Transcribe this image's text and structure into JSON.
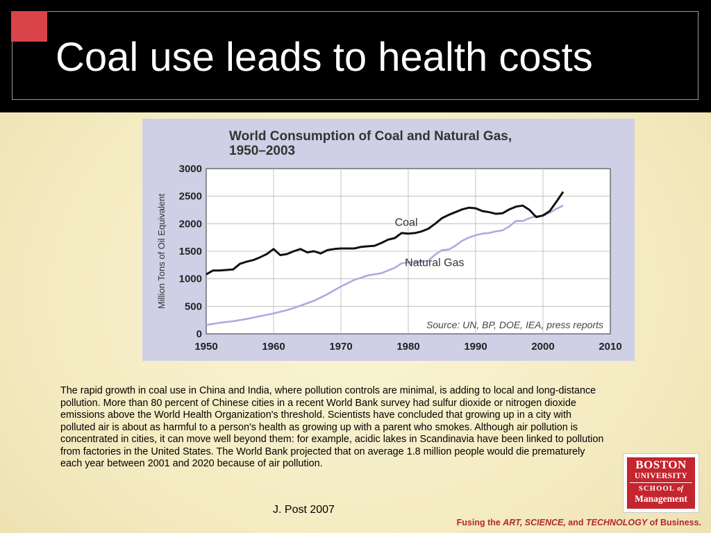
{
  "slide": {
    "title": "Coal use leads to health costs",
    "body": "The rapid growth in coal use in China and India, where pollution controls are minimal, is adding to local and long-distance pollution. More than 80 percent of Chinese cities in a recent World Bank survey had sulfur dioxide or nitrogen dioxide emissions above the World Health Organization's threshold. Scientists have concluded that growing up in a city with polluted air is about as harmful to a person's health as growing up with a parent who smokes. Although air pollution is concentrated in cities, it can move well beyond them: for example, acidic lakes in Scandinavia have been linked to pollution from factories in the United States. The World Bank projected that on average 1.8 million people would die prematurely each year between 2001 and 2020 because of air pollution.",
    "credit": "J. Post 2007"
  },
  "logo": {
    "line1": "BOSTON",
    "line2": "UNIVERSITY",
    "line3a": "SCHOOL",
    "line3b": "of",
    "line4": "Management"
  },
  "tagline": {
    "prefix": "Fusing the ",
    "art": "ART, SCIENCE,",
    "mid": " and ",
    "tech": "TECHNOLOGY",
    "suffix": " of Business."
  },
  "colors": {
    "header_bg": "#000000",
    "accent_red": "#d9434a",
    "coal": "#111111",
    "gas": "#a9abe0",
    "chart_bg": "#cfd0e6",
    "brand_red": "#c4252f"
  },
  "chart_data": {
    "type": "line",
    "title": "World Consumption of Coal and Natural Gas,",
    "title2": "1950–2003",
    "ylabel": "Million Tons of Oil Equivalent",
    "xlabel": "",
    "xlim": [
      1950,
      2010
    ],
    "ylim": [
      0,
      3000
    ],
    "xticks": [
      1950,
      1960,
      1970,
      1980,
      1990,
      2000,
      2010
    ],
    "yticks": [
      0,
      500,
      1000,
      1500,
      2000,
      2500,
      3000
    ],
    "grid": true,
    "source": "Source: UN, BP, DOE, IEA, press reports",
    "series": [
      {
        "name": "Coal",
        "color": "#111111",
        "x": [
          1950,
          1951,
          1952,
          1953,
          1954,
          1955,
          1956,
          1957,
          1958,
          1959,
          1960,
          1961,
          1962,
          1963,
          1964,
          1965,
          1966,
          1967,
          1968,
          1969,
          1970,
          1971,
          1972,
          1973,
          1974,
          1975,
          1976,
          1977,
          1978,
          1979,
          1980,
          1981,
          1982,
          1983,
          1984,
          1985,
          1986,
          1987,
          1988,
          1989,
          1990,
          1991,
          1992,
          1993,
          1994,
          1995,
          1996,
          1997,
          1998,
          1999,
          2000,
          2001,
          2002,
          2003
        ],
        "y": [
          1080,
          1150,
          1150,
          1160,
          1170,
          1270,
          1310,
          1340,
          1390,
          1450,
          1540,
          1430,
          1450,
          1500,
          1540,
          1480,
          1500,
          1460,
          1520,
          1540,
          1550,
          1550,
          1550,
          1580,
          1590,
          1600,
          1650,
          1710,
          1740,
          1830,
          1820,
          1830,
          1860,
          1910,
          2000,
          2100,
          2160,
          2210,
          2260,
          2290,
          2280,
          2230,
          2210,
          2180,
          2190,
          2260,
          2310,
          2330,
          2250,
          2120,
          2150,
          2230,
          2400,
          2580
        ]
      },
      {
        "name": "Natural Gas",
        "color": "#a9abe0",
        "x": [
          1950,
          1952,
          1954,
          1956,
          1958,
          1960,
          1962,
          1964,
          1966,
          1968,
          1970,
          1972,
          1974,
          1976,
          1978,
          1979,
          1980,
          1981,
          1982,
          1983,
          1984,
          1985,
          1986,
          1987,
          1988,
          1989,
          1990,
          1991,
          1992,
          1993,
          1994,
          1995,
          1996,
          1997,
          1998,
          1999,
          2000,
          2001,
          2002,
          2003
        ],
        "y": [
          160,
          200,
          230,
          270,
          320,
          370,
          430,
          510,
          600,
          720,
          860,
          980,
          1060,
          1100,
          1200,
          1280,
          1300,
          1300,
          1310,
          1330,
          1440,
          1520,
          1530,
          1600,
          1690,
          1750,
          1790,
          1820,
          1830,
          1860,
          1880,
          1950,
          2050,
          2050,
          2100,
          2140,
          2140,
          2200,
          2270,
          2330
        ]
      }
    ],
    "annotations": [
      {
        "text": "Coal",
        "x": 1978,
        "y": 1960
      },
      {
        "text": "Natural Gas",
        "x": 1979.5,
        "y": 1230
      }
    ]
  }
}
